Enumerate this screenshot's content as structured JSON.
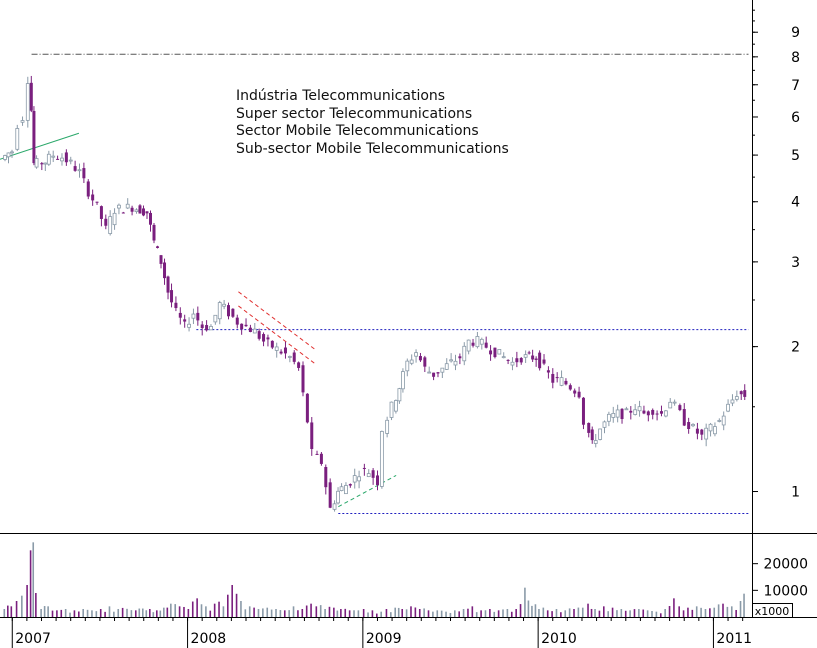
{
  "chart_data": {
    "type": "candlestick",
    "title": "",
    "annotation_lines": [
      "Indústria Telecommunications",
      "Super sector Telecommunications",
      "Sector Mobile Telecommunications",
      "Sub-sector Mobile Telecommunications"
    ],
    "y_scale": "log",
    "y_ticks": [
      1,
      2,
      3,
      4,
      5,
      6,
      7,
      8,
      9
    ],
    "ylim": [
      0.82,
      10.5
    ],
    "x_ticks": [
      "2007",
      "2008",
      "2009",
      "2010",
      "2011"
    ],
    "xlim": [
      2006.93,
      2011.22
    ],
    "volume_ticks": [
      10000,
      20000
    ],
    "volume_unit_label": "x1000",
    "volume_lim": [
      0,
      30000
    ],
    "up_color": "#8a9aa8",
    "down_color": "#7a1f7e",
    "price_series": [
      {
        "t": 2006.95,
        "p": 4.9
      },
      {
        "t": 2006.99,
        "p": 5.05
      },
      {
        "t": 2007.02,
        "p": 5.1
      },
      {
        "t": 2007.05,
        "p": 5.8
      },
      {
        "t": 2007.08,
        "p": 6.0
      },
      {
        "t": 2007.1,
        "p": 7.2
      },
      {
        "t": 2007.115,
        "p": 6.2
      },
      {
        "t": 2007.13,
        "p": 4.8
      },
      {
        "t": 2007.16,
        "p": 4.8
      },
      {
        "t": 2007.2,
        "p": 4.85
      },
      {
        "t": 2007.25,
        "p": 5.0
      },
      {
        "t": 2007.3,
        "p": 4.95
      },
      {
        "t": 2007.35,
        "p": 4.8
      },
      {
        "t": 2007.4,
        "p": 4.6
      },
      {
        "t": 2007.45,
        "p": 4.2
      },
      {
        "t": 2007.5,
        "p": 3.9
      },
      {
        "t": 2007.55,
        "p": 3.5
      },
      {
        "t": 2007.6,
        "p": 3.85
      },
      {
        "t": 2007.7,
        "p": 3.9
      },
      {
        "t": 2007.78,
        "p": 3.8
      },
      {
        "t": 2007.82,
        "p": 3.3
      },
      {
        "t": 2007.86,
        "p": 3.0
      },
      {
        "t": 2007.9,
        "p": 2.6
      },
      {
        "t": 2007.95,
        "p": 2.35
      },
      {
        "t": 2008.0,
        "p": 2.2
      },
      {
        "t": 2008.05,
        "p": 2.35
      },
      {
        "t": 2008.1,
        "p": 2.2
      },
      {
        "t": 2008.15,
        "p": 2.2
      },
      {
        "t": 2008.2,
        "p": 2.45
      },
      {
        "t": 2008.25,
        "p": 2.35
      },
      {
        "t": 2008.3,
        "p": 2.25
      },
      {
        "t": 2008.35,
        "p": 2.2
      },
      {
        "t": 2008.4,
        "p": 2.15
      },
      {
        "t": 2008.45,
        "p": 2.05
      },
      {
        "t": 2008.5,
        "p": 2.0
      },
      {
        "t": 2008.55,
        "p": 1.95
      },
      {
        "t": 2008.6,
        "p": 1.9
      },
      {
        "t": 2008.65,
        "p": 1.8
      },
      {
        "t": 2008.7,
        "p": 1.4
      },
      {
        "t": 2008.73,
        "p": 1.2
      },
      {
        "t": 2008.78,
        "p": 1.15
      },
      {
        "t": 2008.83,
        "p": 0.92
      },
      {
        "t": 2008.87,
        "p": 1.0
      },
      {
        "t": 2008.92,
        "p": 1.03
      },
      {
        "t": 2008.97,
        "p": 1.07
      },
      {
        "t": 2009.0,
        "p": 1.1
      },
      {
        "t": 2009.05,
        "p": 1.1
      },
      {
        "t": 2009.1,
        "p": 1.05
      },
      {
        "t": 2009.13,
        "p": 1.35
      },
      {
        "t": 2009.18,
        "p": 1.5
      },
      {
        "t": 2009.22,
        "p": 1.65
      },
      {
        "t": 2009.27,
        "p": 1.85
      },
      {
        "t": 2009.32,
        "p": 1.95
      },
      {
        "t": 2009.37,
        "p": 1.8
      },
      {
        "t": 2009.42,
        "p": 1.75
      },
      {
        "t": 2009.47,
        "p": 1.8
      },
      {
        "t": 2009.52,
        "p": 1.85
      },
      {
        "t": 2009.57,
        "p": 1.9
      },
      {
        "t": 2009.62,
        "p": 2.05
      },
      {
        "t": 2009.67,
        "p": 2.05
      },
      {
        "t": 2009.72,
        "p": 2.0
      },
      {
        "t": 2009.77,
        "p": 1.95
      },
      {
        "t": 2009.82,
        "p": 1.9
      },
      {
        "t": 2009.87,
        "p": 1.85
      },
      {
        "t": 2009.92,
        "p": 1.9
      },
      {
        "t": 2010.0,
        "p": 1.9
      },
      {
        "t": 2010.05,
        "p": 1.8
      },
      {
        "t": 2010.1,
        "p": 1.7
      },
      {
        "t": 2010.15,
        "p": 1.7
      },
      {
        "t": 2010.2,
        "p": 1.65
      },
      {
        "t": 2010.25,
        "p": 1.6
      },
      {
        "t": 2010.28,
        "p": 1.4
      },
      {
        "t": 2010.32,
        "p": 1.25
      },
      {
        "t": 2010.37,
        "p": 1.35
      },
      {
        "t": 2010.42,
        "p": 1.42
      },
      {
        "t": 2010.47,
        "p": 1.45
      },
      {
        "t": 2010.52,
        "p": 1.45
      },
      {
        "t": 2010.57,
        "p": 1.5
      },
      {
        "t": 2010.62,
        "p": 1.45
      },
      {
        "t": 2010.67,
        "p": 1.48
      },
      {
        "t": 2010.72,
        "p": 1.45
      },
      {
        "t": 2010.77,
        "p": 1.55
      },
      {
        "t": 2010.8,
        "p": 1.5
      },
      {
        "t": 2010.85,
        "p": 1.4
      },
      {
        "t": 2010.9,
        "p": 1.35
      },
      {
        "t": 2010.95,
        "p": 1.3
      },
      {
        "t": 2011.0,
        "p": 1.35
      },
      {
        "t": 2011.05,
        "p": 1.4
      },
      {
        "t": 2011.1,
        "p": 1.5
      },
      {
        "t": 2011.15,
        "p": 1.6
      },
      {
        "t": 2011.19,
        "p": 1.58
      }
    ],
    "trend_lines": [
      {
        "style": "dashdot",
        "color": "#555555",
        "t1": 2007.11,
        "p1": 8.1,
        "t2": 2011.2,
        "p2": 8.1
      },
      {
        "style": "dotted",
        "color": "#1f1fbf",
        "t1": 2008.05,
        "p1": 2.17,
        "t2": 2011.2,
        "p2": 2.17
      },
      {
        "style": "dotted",
        "color": "#1f1fbf",
        "t1": 2008.86,
        "p1": 0.9,
        "t2": 2011.2,
        "p2": 0.9
      },
      {
        "style": "solid",
        "color": "#2aa86a",
        "t1": 2006.93,
        "p1": 4.9,
        "t2": 2007.38,
        "p2": 5.55
      },
      {
        "style": "dashed",
        "color": "#e03030",
        "t1": 2008.29,
        "p1": 2.6,
        "t2": 2008.73,
        "p2": 1.97
      },
      {
        "style": "dashed",
        "color": "#e03030",
        "t1": 2008.29,
        "p1": 2.43,
        "t2": 2008.73,
        "p2": 1.84
      },
      {
        "style": "dashed",
        "color": "#2aa86a",
        "t1": 2008.86,
        "p1": 0.93,
        "t2": 2009.19,
        "p2": 1.08
      }
    ],
    "volume_series": [
      {
        "t": 2006.95,
        "v": 3000
      },
      {
        "t": 2006.99,
        "v": 4000
      },
      {
        "t": 2007.02,
        "v": 6000
      },
      {
        "t": 2007.05,
        "v": 8000
      },
      {
        "t": 2007.08,
        "v": 12000
      },
      {
        "t": 2007.1,
        "v": 25000
      },
      {
        "t": 2007.115,
        "v": 28000
      },
      {
        "t": 2007.13,
        "v": 9000
      },
      {
        "t": 2007.16,
        "v": 3000
      },
      {
        "t": 2007.2,
        "v": 4000
      },
      {
        "t": 2007.25,
        "v": 2500
      },
      {
        "t": 2007.3,
        "v": 3000
      },
      {
        "t": 2007.35,
        "v": 2500
      },
      {
        "t": 2007.4,
        "v": 3000
      },
      {
        "t": 2007.45,
        "v": 2500
      },
      {
        "t": 2007.5,
        "v": 3000
      },
      {
        "t": 2007.55,
        "v": 4000
      },
      {
        "t": 2007.6,
        "v": 3000
      },
      {
        "t": 2007.7,
        "v": 2500
      },
      {
        "t": 2007.78,
        "v": 3000
      },
      {
        "t": 2007.82,
        "v": 2500
      },
      {
        "t": 2007.86,
        "v": 3500
      },
      {
        "t": 2007.9,
        "v": 5000
      },
      {
        "t": 2007.95,
        "v": 4000
      },
      {
        "t": 2008.0,
        "v": 3000
      },
      {
        "t": 2008.05,
        "v": 7000
      },
      {
        "t": 2008.1,
        "v": 4000
      },
      {
        "t": 2008.15,
        "v": 5000
      },
      {
        "t": 2008.2,
        "v": 4000
      },
      {
        "t": 2008.25,
        "v": 12000
      },
      {
        "t": 2008.3,
        "v": 6000
      },
      {
        "t": 2008.35,
        "v": 4000
      },
      {
        "t": 2008.4,
        "v": 3000
      },
      {
        "t": 2008.45,
        "v": 3500
      },
      {
        "t": 2008.5,
        "v": 3000
      },
      {
        "t": 2008.55,
        "v": 2500
      },
      {
        "t": 2008.6,
        "v": 4000
      },
      {
        "t": 2008.65,
        "v": 3000
      },
      {
        "t": 2008.7,
        "v": 5000
      },
      {
        "t": 2008.73,
        "v": 4000
      },
      {
        "t": 2008.78,
        "v": 3000
      },
      {
        "t": 2008.83,
        "v": 3500
      },
      {
        "t": 2008.87,
        "v": 3000
      },
      {
        "t": 2008.92,
        "v": 2500
      },
      {
        "t": 2008.97,
        "v": 2500
      },
      {
        "t": 2009.0,
        "v": 3000
      },
      {
        "t": 2009.05,
        "v": 2500
      },
      {
        "t": 2009.1,
        "v": 2000
      },
      {
        "t": 2009.13,
        "v": 3000
      },
      {
        "t": 2009.18,
        "v": 3500
      },
      {
        "t": 2009.22,
        "v": 3000
      },
      {
        "t": 2009.27,
        "v": 4000
      },
      {
        "t": 2009.32,
        "v": 3000
      },
      {
        "t": 2009.37,
        "v": 2500
      },
      {
        "t": 2009.42,
        "v": 2500
      },
      {
        "t": 2009.47,
        "v": 2000
      },
      {
        "t": 2009.52,
        "v": 2500
      },
      {
        "t": 2009.57,
        "v": 3000
      },
      {
        "t": 2009.62,
        "v": 4000
      },
      {
        "t": 2009.67,
        "v": 2500
      },
      {
        "t": 2009.72,
        "v": 3000
      },
      {
        "t": 2009.77,
        "v": 2500
      },
      {
        "t": 2009.82,
        "v": 3000
      },
      {
        "t": 2009.87,
        "v": 3000
      },
      {
        "t": 2009.92,
        "v": 11000
      },
      {
        "t": 2010.0,
        "v": 3000
      },
      {
        "t": 2010.05,
        "v": 2500
      },
      {
        "t": 2010.1,
        "v": 3000
      },
      {
        "t": 2010.15,
        "v": 2500
      },
      {
        "t": 2010.2,
        "v": 3000
      },
      {
        "t": 2010.25,
        "v": 3500
      },
      {
        "t": 2010.28,
        "v": 5000
      },
      {
        "t": 2010.32,
        "v": 3000
      },
      {
        "t": 2010.37,
        "v": 4000
      },
      {
        "t": 2010.42,
        "v": 3500
      },
      {
        "t": 2010.47,
        "v": 3000
      },
      {
        "t": 2010.52,
        "v": 2500
      },
      {
        "t": 2010.57,
        "v": 3000
      },
      {
        "t": 2010.62,
        "v": 2500
      },
      {
        "t": 2010.67,
        "v": 2000
      },
      {
        "t": 2010.72,
        "v": 3000
      },
      {
        "t": 2010.77,
        "v": 7000
      },
      {
        "t": 2010.8,
        "v": 4000
      },
      {
        "t": 2010.85,
        "v": 3500
      },
      {
        "t": 2010.9,
        "v": 4000
      },
      {
        "t": 2010.95,
        "v": 3000
      },
      {
        "t": 2011.0,
        "v": 3500
      },
      {
        "t": 2011.05,
        "v": 5000
      },
      {
        "t": 2011.1,
        "v": 4000
      },
      {
        "t": 2011.15,
        "v": 6000
      },
      {
        "t": 2011.19,
        "v": 7500
      }
    ]
  }
}
